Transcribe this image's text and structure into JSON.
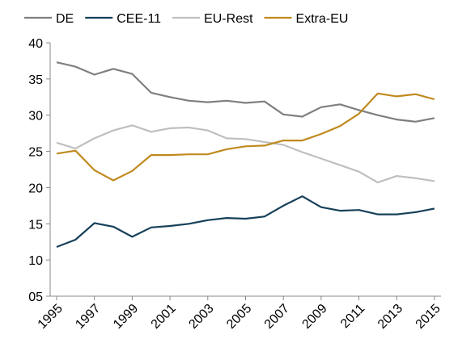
{
  "chart_data": {
    "type": "line",
    "x": [
      1995,
      1996,
      1997,
      1998,
      1999,
      2000,
      2001,
      2002,
      2003,
      2004,
      2005,
      2006,
      2007,
      2008,
      2009,
      2010,
      2011,
      2012,
      2013,
      2014,
      2015
    ],
    "xlim": [
      1995,
      2015
    ],
    "xticks": [
      1995,
      1997,
      1999,
      2001,
      2003,
      2005,
      2007,
      2009,
      2011,
      2013,
      2015
    ],
    "ylim": [
      5,
      40
    ],
    "yticks": [
      {
        "value": 5,
        "label": "05"
      },
      10,
      15,
      20,
      25,
      30,
      35,
      40
    ],
    "grid": false,
    "legend": "top",
    "series": [
      {
        "name": "DE",
        "color": "#7f7f7f",
        "values": [
          37.3,
          36.7,
          35.6,
          36.4,
          35.7,
          33.1,
          32.5,
          32.0,
          31.8,
          32.0,
          31.7,
          31.9,
          30.1,
          29.8,
          31.1,
          31.5,
          30.7,
          30.0,
          29.4,
          29.1,
          29.6
        ]
      },
      {
        "name": "CEE-11",
        "color": "#17405a",
        "values": [
          11.8,
          12.8,
          15.1,
          14.6,
          13.2,
          14.5,
          14.7,
          15.0,
          15.5,
          15.8,
          15.7,
          16.0,
          17.5,
          18.8,
          17.3,
          16.8,
          16.9,
          16.3,
          16.3,
          16.6,
          17.1
        ]
      },
      {
        "name": "EU-Rest",
        "color": "#bfbfbf",
        "values": [
          26.2,
          25.4,
          26.8,
          27.9,
          28.6,
          27.7,
          28.2,
          28.3,
          27.9,
          26.8,
          26.7,
          26.3,
          25.9,
          24.9,
          24.0,
          23.1,
          22.2,
          20.7,
          21.6,
          21.3,
          20.9
        ]
      },
      {
        "name": "Extra-EU",
        "color": "#c08a1e",
        "values": [
          24.7,
          25.1,
          22.4,
          21.0,
          22.3,
          24.5,
          24.5,
          24.6,
          24.6,
          25.3,
          25.7,
          25.8,
          26.5,
          26.5,
          27.4,
          28.5,
          30.2,
          33.0,
          32.6,
          32.9,
          32.2
        ]
      }
    ]
  }
}
